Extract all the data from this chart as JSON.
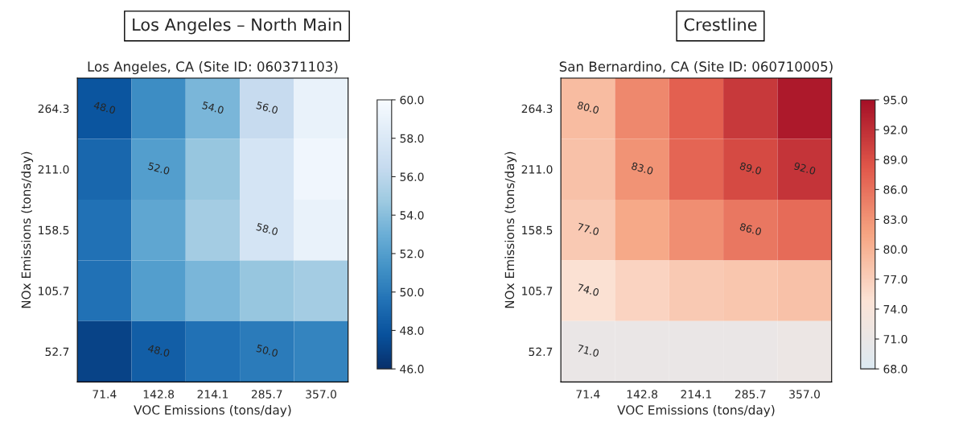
{
  "chart_data": [
    {
      "type": "heatmap",
      "title": "Los Angeles – North Main",
      "subtitle": "Los Angeles, CA (Site ID: 060371103)",
      "xlabel": "VOC Emissions (tons/day)",
      "ylabel": "NOx Emissions (tons/day)",
      "categories": [
        "71.4",
        "142.8",
        "214.1",
        "285.7",
        "357.0"
      ],
      "y_categories": [
        "264.3",
        "211.0",
        "158.5",
        "105.7",
        "52.7"
      ],
      "cells": [
        [
          48,
          51,
          53.5,
          56.5,
          59
        ],
        [
          49,
          52,
          54.5,
          57.5,
          59.5
        ],
        [
          49.5,
          52.5,
          55,
          57.5,
          59
        ],
        [
          49.5,
          52,
          53.5,
          54.5,
          55
        ],
        [
          47,
          48.5,
          49.5,
          50,
          50.5
        ]
      ],
      "clim": [
        46,
        60
      ],
      "cticks": [
        {
          "value": 46,
          "label": "46.0"
        },
        {
          "value": 48,
          "label": "48.0"
        },
        {
          "value": 50,
          "label": "50.0"
        },
        {
          "value": 52,
          "label": "52.0"
        },
        {
          "value": 54,
          "label": "54.0"
        },
        {
          "value": 56,
          "label": "56.0"
        },
        {
          "value": 58,
          "label": "58.0"
        },
        {
          "value": 60,
          "label": "60.0"
        }
      ],
      "annotations": [
        "48.0",
        "54.0",
        "56.0",
        "58.0",
        "52.0",
        "50.0",
        "48.0"
      ]
    },
    {
      "type": "heatmap",
      "title": "Crestline",
      "subtitle": "San Bernardino, CA (Site ID: 060710005)",
      "xlabel": "VOC Emissions (tons/day)",
      "ylabel": "NOx Emissions (tons/day)",
      "categories": [
        "71.4",
        "142.8",
        "214.1",
        "285.7",
        "357.0"
      ],
      "y_categories": [
        "264.3",
        "211.0",
        "158.5",
        "105.7",
        "52.7"
      ],
      "cells": [
        [
          79,
          84,
          87.5,
          91,
          94
        ],
        [
          78.5,
          83,
          87,
          89.5,
          91.5
        ],
        [
          77.5,
          81,
          83.5,
          85.5,
          86.5
        ],
        [
          75,
          76.5,
          77.5,
          78,
          78.5
        ],
        [
          71,
          71,
          71,
          71,
          71.5
        ]
      ],
      "clim": [
        68,
        95
      ],
      "cticks": [
        {
          "value": 68,
          "label": "68.0"
        },
        {
          "value": 71,
          "label": "71.0"
        },
        {
          "value": 74,
          "label": "74.0"
        },
        {
          "value": 77,
          "label": "77.0"
        },
        {
          "value": 80,
          "label": "80.0"
        },
        {
          "value": 83,
          "label": "83.0"
        },
        {
          "value": 86,
          "label": "86.0"
        },
        {
          "value": 89,
          "label": "89.0"
        },
        {
          "value": 92,
          "label": "92.0"
        },
        {
          "value": 95,
          "label": "95.0"
        }
      ],
      "annotations": [
        "92.0",
        "89.0",
        "86.0",
        "83.0",
        "80.0",
        "77.0",
        "74.0",
        "71.0"
      ]
    }
  ]
}
